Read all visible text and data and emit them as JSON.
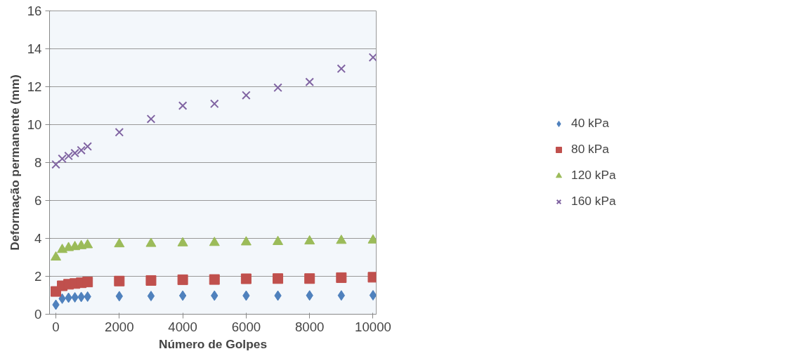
{
  "chart_data": {
    "type": "scatter",
    "xlabel": "Número de Golpes",
    "ylabel": "Deformação permanente (mm)",
    "x": [
      0,
      200,
      400,
      600,
      800,
      1000,
      2000,
      3000,
      4000,
      5000,
      6000,
      7000,
      8000,
      9000,
      10000
    ],
    "series": [
      {
        "name": "40 kPa",
        "color": "#4f81bd",
        "marker": "diamond",
        "values": [
          0.5,
          0.82,
          0.87,
          0.89,
          0.91,
          0.93,
          0.95,
          0.96,
          0.98,
          0.98,
          0.98,
          0.98,
          0.99,
          0.99,
          1.0
        ]
      },
      {
        "name": "80 kPa",
        "color": "#c0504d",
        "marker": "square",
        "values": [
          1.2,
          1.5,
          1.58,
          1.62,
          1.66,
          1.7,
          1.75,
          1.78,
          1.82,
          1.83,
          1.87,
          1.88,
          1.88,
          1.93,
          1.95
        ]
      },
      {
        "name": "120 kPa",
        "color": "#9bbb59",
        "marker": "triangle",
        "values": [
          3.0,
          3.4,
          3.5,
          3.55,
          3.6,
          3.65,
          3.7,
          3.72,
          3.75,
          3.77,
          3.8,
          3.82,
          3.85,
          3.88,
          3.9
        ]
      },
      {
        "name": "160 kPa",
        "color": "#8064a2",
        "marker": "x",
        "values": [
          7.9,
          8.2,
          8.35,
          8.5,
          8.65,
          8.85,
          9.6,
          10.3,
          11.0,
          11.1,
          11.55,
          11.95,
          12.25,
          12.95,
          13.55
        ]
      }
    ],
    "xlim": [
      -200,
      10100
    ],
    "ylim": [
      0,
      16
    ],
    "xticks": [
      0,
      2000,
      4000,
      6000,
      8000,
      10000
    ],
    "yticks": [
      0,
      2,
      4,
      6,
      8,
      10,
      12,
      14,
      16
    ],
    "grid": "y",
    "legend": "right"
  }
}
